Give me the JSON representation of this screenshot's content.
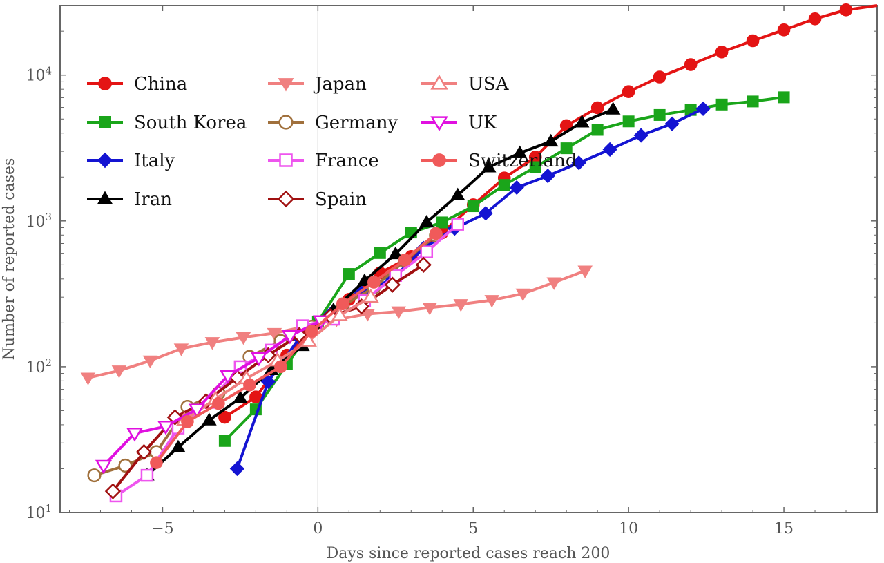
{
  "chart_data": {
    "type": "line",
    "xlabel": "Days since reported cases reach 200",
    "ylabel": "Number of reported cases",
    "xlim": [
      -8.3,
      18
    ],
    "ylim": [
      10,
      30000
    ],
    "yscale": "log",
    "x_ticks": [
      -5,
      0,
      5,
      10,
      15
    ],
    "x_tick_labels": [
      "−5",
      "0",
      "5",
      "10",
      "15"
    ],
    "y_ticks": [
      {
        "value": 10,
        "base": "10",
        "exp": "1"
      },
      {
        "value": 100,
        "base": "10",
        "exp": "2"
      },
      {
        "value": 1000,
        "base": "10",
        "exp": "3"
      },
      {
        "value": 10000,
        "base": "10",
        "exp": "4"
      }
    ],
    "grid": false,
    "vertical_reference_line_x": 0,
    "legend_position": "top-left",
    "series": [
      {
        "name": "China",
        "color": "#e41414",
        "marker": "circle",
        "filled": true,
        "x": [
          -3,
          -2,
          -1,
          0,
          1,
          2,
          3,
          4,
          5,
          6,
          7,
          8,
          9,
          10,
          11,
          12,
          13,
          14,
          15,
          16,
          17,
          18
        ],
        "y": [
          45,
          62,
          120,
          200,
          290,
          440,
          570,
          830,
          1290,
          1970,
          2740,
          4500,
          5970,
          7700,
          9700,
          11800,
          14400,
          17200,
          20400,
          24300,
          28000,
          31000
        ]
      },
      {
        "name": "South Korea",
        "color": "#1aa51a",
        "marker": "square",
        "filled": true,
        "x": [
          -3,
          -2,
          -1,
          0,
          1,
          2,
          3,
          4,
          5,
          6,
          7,
          8,
          9,
          10,
          11,
          12,
          13,
          14,
          15
        ],
        "y": [
          31,
          51,
          104,
          204,
          433,
          602,
          833,
          977,
          1261,
          1766,
          2337,
          3150,
          4212,
          4812,
          5328,
          5766,
          6284,
          6593,
          7041
        ]
      },
      {
        "name": "Italy",
        "color": "#1414d2",
        "marker": "diamond",
        "filled": true,
        "x": [
          -2.6,
          -1.6,
          -0.6,
          0.4,
          1.4,
          2.4,
          3.4,
          4.4,
          5.4,
          6.4,
          7.4,
          8.4,
          9.4,
          10.4,
          11.4,
          12.4
        ],
        "y": [
          20,
          79,
          157,
          229,
          322,
          400,
          650,
          888,
          1128,
          1694,
          2036,
          2502,
          3089,
          3858,
          4636,
          5883
        ]
      },
      {
        "name": "Iran",
        "color": "#000000",
        "marker": "triangle-up",
        "filled": true,
        "x": [
          -5.5,
          -4.5,
          -3.5,
          -2.5,
          -1.5,
          -0.5,
          0.5,
          1.5,
          2.5,
          3.5,
          4.5,
          5.5,
          6.5,
          7.5,
          8.5,
          9.5
        ],
        "y": [
          18,
          28,
          43,
          61,
          95,
          139,
          245,
          388,
          593,
          978,
          1501,
          2336,
          2922,
          3513,
          4747,
          5823
        ]
      },
      {
        "name": "Japan",
        "color": "#f08080",
        "marker": "triangle-down",
        "filled": true,
        "x": [
          -7.4,
          -6.4,
          -5.4,
          -4.4,
          -3.4,
          -2.4,
          -1.4,
          -0.4,
          0.6,
          1.6,
          2.6,
          3.6,
          4.6,
          5.6,
          6.6,
          7.6,
          8.6
        ],
        "y": [
          84,
          94,
          110,
          133,
          147,
          159,
          170,
          189,
          210,
          230,
          239,
          254,
          268,
          286,
          317,
          378,
          455
        ]
      },
      {
        "name": "Germany",
        "color": "#a0703c",
        "marker": "circle",
        "filled": false,
        "x": [
          -7.2,
          -6.2,
          -5.2,
          -4.2,
          -3.2,
          -2.2,
          -1.2,
          -0.2,
          0.8,
          1.8,
          2.8,
          3.8
        ],
        "y": [
          18,
          21,
          26,
          53,
          66,
          117,
          150,
          188,
          262,
          349,
          534,
          795
        ]
      },
      {
        "name": "France",
        "color": "#ee55ee",
        "marker": "square",
        "filled": false,
        "x": [
          -6.5,
          -5.5,
          -4.5,
          -3.5,
          -2.5,
          -1.5,
          -0.5,
          0.5,
          1.5,
          2.5,
          3.5,
          4.5
        ],
        "y": [
          13,
          18,
          38,
          57,
          100,
          130,
          191,
          212,
          285,
          423,
          613,
          949
        ]
      },
      {
        "name": "Spain",
        "color": "#a01010",
        "marker": "diamond",
        "filled": false,
        "x": [
          -6.6,
          -5.6,
          -4.6,
          -3.6,
          -2.6,
          -1.6,
          -0.6,
          0.4,
          1.4,
          2.4,
          3.4
        ],
        "y": [
          14,
          26,
          45,
          58,
          84,
          120,
          165,
          222,
          259,
          365,
          500
        ]
      },
      {
        "name": "USA",
        "color": "#f08080",
        "marker": "triangle-up",
        "filled": false,
        "x": [
          -4.3,
          -3.3,
          -2.3,
          -1.3,
          -0.3,
          0.7,
          1.7
        ],
        "y": [
          43,
          60,
          83,
          110,
          150,
          225,
          300
        ]
      },
      {
        "name": "UK",
        "color": "#e010e0",
        "marker": "triangle-down",
        "filled": false,
        "x": [
          -6.9,
          -5.9,
          -4.9,
          -3.9,
          -2.9,
          -1.9,
          -0.9,
          0.1
        ],
        "y": [
          21,
          35,
          39,
          51,
          87,
          115,
          163,
          206
        ]
      },
      {
        "name": "Switzerland",
        "color": "#f05a5a",
        "marker": "circle",
        "filled": true,
        "x": [
          -5.2,
          -4.2,
          -3.2,
          -2.2,
          -1.2,
          -0.2,
          0.8,
          1.8,
          2.8,
          3.8
        ],
        "y": [
          22,
          42,
          56,
          75,
          100,
          175,
          270,
          380,
          540,
          820
        ]
      }
    ]
  }
}
